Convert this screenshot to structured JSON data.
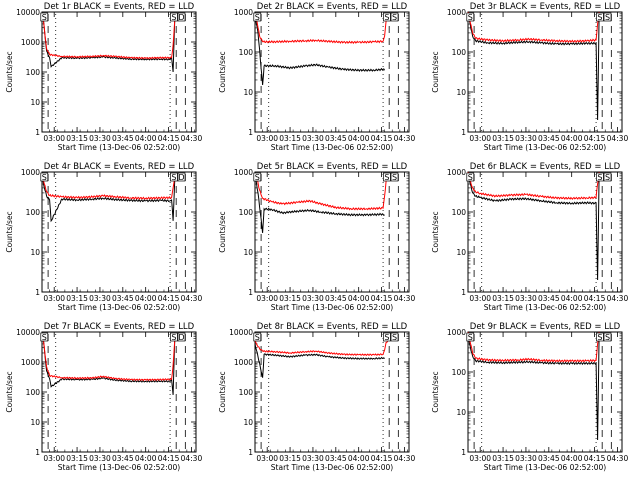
{
  "chart_data": [
    {
      "type": "line",
      "title": "Det 1r BLACK = Events, RED = LLD",
      "xlabel": "Start Time (13-Dec-06 02:52:00)",
      "ylabel": "Counts/sec",
      "xlim": [
        "02:52:00",
        "04:33:00"
      ],
      "ylim": [
        1,
        10000
      ],
      "yscale": "log",
      "xticks": [
        "03:00",
        "03:15",
        "03:30",
        "03:45",
        "04:00",
        "04:15",
        "04:30"
      ],
      "yticks": [
        "1",
        "10",
        "100",
        "1000",
        "10000"
      ],
      "markers": [
        "S",
        "S",
        "D"
      ],
      "series": [
        {
          "color": "#000000",
          "x": [
            "02:52",
            "02:53",
            "02:55",
            "02:57",
            "02:58",
            "03:05",
            "03:15",
            "03:25",
            "03:32",
            "03:40",
            "03:50",
            "04:00",
            "04:10",
            "04:16",
            "04:17",
            "04:18",
            "04:19",
            "04:20"
          ],
          "y": [
            9000,
            5000,
            500,
            300,
            150,
            300,
            290,
            300,
            320,
            295,
            270,
            265,
            270,
            260,
            300,
            100,
            5000,
            9000
          ]
        },
        {
          "color": "#ff0000",
          "x": [
            "02:52",
            "02:53",
            "02:55",
            "02:57",
            "03:05",
            "03:15",
            "03:25",
            "03:32",
            "03:40",
            "03:50",
            "04:00",
            "04:10",
            "04:17",
            "04:18",
            "04:19",
            "04:20"
          ],
          "y": [
            9000,
            5000,
            600,
            380,
            330,
            320,
            330,
            350,
            330,
            300,
            290,
            300,
            300,
            800,
            5000,
            9000
          ]
        }
      ]
    },
    {
      "type": "line",
      "title": "Det 2r BLACK = Events, RED = LLD",
      "xlabel": "Start Time (13-Dec-06 02:52:00)",
      "ylabel": "Counts/sec",
      "xlim": [
        "02:52:00",
        "04:33:00"
      ],
      "ylim": [
        1,
        1000
      ],
      "yscale": "log",
      "xticks": [
        "03:00",
        "03:15",
        "03:30",
        "03:45",
        "04:00",
        "04:15",
        "04:30"
      ],
      "yticks": [
        "1",
        "10",
        "100",
        "1000"
      ],
      "markers": [
        "S",
        "S",
        "S"
      ],
      "series": [
        {
          "color": "#000000",
          "x": [
            "02:52",
            "02:54",
            "02:57",
            "02:58",
            "03:05",
            "03:15",
            "03:25",
            "03:32",
            "03:40",
            "03:50",
            "04:00",
            "04:10",
            "04:16",
            "04:17"
          ],
          "y": [
            800,
            300,
            15,
            45,
            45,
            40,
            45,
            48,
            42,
            37,
            35,
            35,
            37,
            35
          ]
        },
        {
          "color": "#ff0000",
          "x": [
            "02:52",
            "02:53",
            "02:55",
            "02:57",
            "03:05",
            "03:15",
            "03:25",
            "03:32",
            "03:40",
            "03:50",
            "04:00",
            "04:10",
            "04:16",
            "04:17",
            "04:18",
            "04:19"
          ],
          "y": [
            900,
            700,
            250,
            180,
            180,
            185,
            190,
            195,
            185,
            175,
            175,
            180,
            185,
            250,
            600,
            900
          ]
        }
      ]
    },
    {
      "type": "line",
      "title": "Det 3r BLACK = Events, RED = LLD",
      "xlabel": "Start Time (13-Dec-06 02:52:00)",
      "ylabel": "Counts/sec",
      "xlim": [
        "02:52:00",
        "04:33:00"
      ],
      "ylim": [
        1,
        1000
      ],
      "yscale": "log",
      "xticks": [
        "03:00",
        "03:15",
        "03:30",
        "03:45",
        "04:00",
        "04:15",
        "04:30"
      ],
      "yticks": [
        "1",
        "10",
        "100",
        "1000"
      ],
      "markers": [
        "S",
        "S",
        "S"
      ],
      "series": [
        {
          "color": "#000000",
          "x": [
            "02:52",
            "02:53",
            "02:55",
            "02:57",
            "03:05",
            "03:15",
            "03:25",
            "03:32",
            "03:40",
            "03:50",
            "04:00",
            "04:10",
            "04:16",
            "04:17",
            "04:18"
          ],
          "y": [
            1000,
            600,
            250,
            190,
            170,
            165,
            175,
            180,
            170,
            160,
            160,
            165,
            165,
            2,
            900
          ]
        },
        {
          "color": "#ff0000",
          "x": [
            "02:52",
            "02:53",
            "02:55",
            "02:57",
            "03:05",
            "03:15",
            "03:25",
            "03:32",
            "03:40",
            "03:50",
            "04:00",
            "04:10",
            "04:16",
            "04:17",
            "04:18"
          ],
          "y": [
            1000,
            700,
            300,
            220,
            200,
            190,
            200,
            210,
            200,
            190,
            185,
            190,
            200,
            500,
            1000
          ]
        }
      ]
    },
    {
      "type": "line",
      "title": "Det 4r BLACK = Events, RED = LLD",
      "xlabel": "Start Time (13-Dec-06 02:52:00)",
      "ylabel": "Counts/sec",
      "xlim": [
        "02:52:00",
        "04:33:00"
      ],
      "ylim": [
        1,
        1000
      ],
      "yscale": "log",
      "xticks": [
        "03:00",
        "03:15",
        "03:30",
        "03:45",
        "04:00",
        "04:15",
        "04:30"
      ],
      "yticks": [
        "1",
        "10",
        "100",
        "1000"
      ],
      "markers": [
        "S",
        "S",
        "D"
      ],
      "series": [
        {
          "color": "#000000",
          "x": [
            "02:52",
            "02:53",
            "02:55",
            "02:57",
            "02:58",
            "03:05",
            "03:15",
            "03:25",
            "03:32",
            "03:40",
            "03:50",
            "04:00",
            "04:10",
            "04:16",
            "04:17",
            "04:18",
            "04:19",
            "04:20"
          ],
          "y": [
            900,
            500,
            250,
            200,
            60,
            210,
            200,
            210,
            220,
            205,
            195,
            190,
            195,
            190,
            200,
            60,
            600,
            900
          ]
        },
        {
          "color": "#ff0000",
          "x": [
            "02:52",
            "02:53",
            "02:55",
            "02:57",
            "03:05",
            "03:15",
            "03:25",
            "03:32",
            "03:40",
            "03:50",
            "04:00",
            "04:10",
            "04:17",
            "04:18",
            "04:19",
            "04:20"
          ],
          "y": [
            900,
            600,
            320,
            260,
            240,
            230,
            240,
            255,
            240,
            225,
            220,
            225,
            230,
            400,
            700,
            900
          ]
        }
      ]
    },
    {
      "type": "line",
      "title": "Det 5r BLACK = Events, RED = LLD",
      "xlabel": "Start Time (13-Dec-06 02:52:00)",
      "ylabel": "Counts/sec",
      "xlim": [
        "02:52:00",
        "04:33:00"
      ],
      "ylim": [
        1,
        1000
      ],
      "yscale": "log",
      "xticks": [
        "03:00",
        "03:15",
        "03:30",
        "03:45",
        "04:00",
        "04:15",
        "04:30"
      ],
      "yticks": [
        "1",
        "10",
        "100",
        "1000"
      ],
      "markers": [
        "S",
        "S",
        "S"
      ],
      "series": [
        {
          "color": "#000000",
          "x": [
            "02:52",
            "02:54",
            "02:57",
            "02:58",
            "03:03",
            "03:10",
            "03:20",
            "03:28",
            "03:35",
            "03:45",
            "03:55",
            "04:05",
            "04:16",
            "04:17"
          ],
          "y": [
            900,
            300,
            30,
            120,
            115,
            95,
            105,
            110,
            100,
            90,
            85,
            85,
            88,
            85
          ]
        },
        {
          "color": "#ff0000",
          "x": [
            "02:52",
            "02:53",
            "02:55",
            "02:57",
            "03:03",
            "03:10",
            "03:20",
            "03:28",
            "03:35",
            "03:45",
            "03:55",
            "04:05",
            "04:16",
            "04:17",
            "04:18",
            "04:19"
          ],
          "y": [
            900,
            800,
            350,
            220,
            180,
            160,
            175,
            190,
            160,
            130,
            120,
            120,
            125,
            250,
            600,
            900
          ]
        }
      ]
    },
    {
      "type": "line",
      "title": "Det 6r BLACK = Events, RED = LLD",
      "xlabel": "Start Time (13-Dec-06 02:52:00)",
      "ylabel": "Counts/sec",
      "xlim": [
        "02:52:00",
        "04:33:00"
      ],
      "ylim": [
        1,
        1000
      ],
      "yscale": "log",
      "xticks": [
        "03:00",
        "03:15",
        "03:30",
        "03:45",
        "04:00",
        "04:15",
        "04:30"
      ],
      "yticks": [
        "1",
        "10",
        "100",
        "1000"
      ],
      "markers": [
        "S",
        "S",
        "S"
      ],
      "series": [
        {
          "color": "#000000",
          "x": [
            "02:52",
            "02:53",
            "02:55",
            "02:57",
            "03:00",
            "03:10",
            "03:20",
            "03:30",
            "03:40",
            "03:50",
            "04:00",
            "04:10",
            "04:16",
            "04:17",
            "04:18"
          ],
          "y": [
            1000,
            600,
            300,
            250,
            230,
            190,
            210,
            215,
            190,
            170,
            165,
            170,
            165,
            2,
            900
          ]
        },
        {
          "color": "#ff0000",
          "x": [
            "02:52",
            "02:53",
            "02:55",
            "02:57",
            "03:00",
            "03:10",
            "03:20",
            "03:30",
            "03:40",
            "03:50",
            "04:00",
            "04:10",
            "04:16",
            "04:17",
            "04:18"
          ],
          "y": [
            1000,
            700,
            400,
            320,
            290,
            250,
            265,
            275,
            245,
            225,
            220,
            225,
            230,
            500,
            1000
          ]
        }
      ]
    },
    {
      "type": "line",
      "title": "Det 7r BLACK = Events, RED = LLD",
      "xlabel": "Start Time (13-Dec-06 02:52:00)",
      "ylabel": "Counts/sec",
      "xlim": [
        "02:52:00",
        "04:33:00"
      ],
      "ylim": [
        1,
        10000
      ],
      "yscale": "log",
      "xticks": [
        "03:00",
        "03:15",
        "03:30",
        "03:45",
        "04:00",
        "04:15",
        "04:30"
      ],
      "yticks": [
        "1",
        "10",
        "100",
        "1000",
        "10000"
      ],
      "markers": [
        "S",
        "S",
        "D"
      ],
      "series": [
        {
          "color": "#000000",
          "x": [
            "02:52",
            "02:53",
            "02:55",
            "02:57",
            "02:58",
            "03:05",
            "03:15",
            "03:25",
            "03:32",
            "03:40",
            "03:50",
            "04:00",
            "04:10",
            "04:16",
            "04:17",
            "04:18",
            "04:19",
            "04:20"
          ],
          "y": [
            9000,
            5000,
            500,
            280,
            150,
            270,
            260,
            265,
            290,
            250,
            230,
            225,
            230,
            225,
            260,
            80,
            5000,
            9000
          ]
        },
        {
          "color": "#ff0000",
          "x": [
            "02:52",
            "02:53",
            "02:55",
            "02:57",
            "03:05",
            "03:15",
            "03:25",
            "03:32",
            "03:40",
            "03:50",
            "04:00",
            "04:10",
            "04:17",
            "04:18",
            "04:19",
            "04:20"
          ],
          "y": [
            9000,
            5000,
            700,
            350,
            300,
            290,
            295,
            330,
            280,
            260,
            255,
            260,
            265,
            800,
            5000,
            9000
          ]
        }
      ]
    },
    {
      "type": "line",
      "title": "Det 8r BLACK = Events, RED = LLD",
      "xlabel": "Start Time (13-Dec-06 02:52:00)",
      "ylabel": "Counts/sec",
      "xlim": [
        "02:52:00",
        "04:33:00"
      ],
      "ylim": [
        1,
        10000
      ],
      "yscale": "log",
      "xticks": [
        "03:00",
        "03:15",
        "03:30",
        "03:45",
        "04:00",
        "04:15",
        "04:30"
      ],
      "yticks": [
        "1",
        "10",
        "100",
        "1000",
        "10000"
      ],
      "markers": [
        "S",
        "S",
        "S"
      ],
      "series": [
        {
          "color": "#000000",
          "x": [
            "02:52",
            "02:54",
            "02:57",
            "02:58",
            "03:05",
            "03:15",
            "03:25",
            "03:32",
            "03:40",
            "03:50",
            "04:00",
            "04:10",
            "04:16",
            "04:17"
          ],
          "y": [
            4000,
            1500,
            300,
            1800,
            1700,
            1500,
            1700,
            1750,
            1500,
            1350,
            1300,
            1300,
            1350,
            1300
          ]
        },
        {
          "color": "#ff0000",
          "x": [
            "02:52",
            "02:53",
            "02:55",
            "02:57",
            "03:05",
            "03:15",
            "03:25",
            "03:32",
            "03:40",
            "03:50",
            "04:00",
            "04:10",
            "04:16",
            "04:17",
            "04:18",
            "04:19"
          ],
          "y": [
            5000,
            4000,
            2800,
            2300,
            2200,
            2000,
            2200,
            2300,
            2000,
            1800,
            1750,
            1750,
            1800,
            2500,
            4500,
            5000
          ]
        }
      ]
    },
    {
      "type": "line",
      "title": "Det 9r BLACK = Events, RED = LLD",
      "xlabel": "Start Time (13-Dec-06 02:52:00)",
      "ylabel": "Counts/sec",
      "xlim": [
        "02:52:00",
        "04:33:00"
      ],
      "ylim": [
        1,
        1000
      ],
      "yscale": "log",
      "xticks": [
        "03:00",
        "03:15",
        "03:30",
        "03:45",
        "04:00",
        "04:15",
        "04:30"
      ],
      "yticks": [
        "1",
        "10",
        "100",
        "1000"
      ],
      "markers": [
        "S",
        "S",
        "S"
      ],
      "series": [
        {
          "color": "#000000",
          "x": [
            "02:52",
            "02:53",
            "02:55",
            "02:57",
            "03:05",
            "03:15",
            "03:25",
            "03:32",
            "03:40",
            "03:50",
            "04:00",
            "04:10",
            "04:16",
            "04:17",
            "04:18"
          ],
          "y": [
            1000,
            500,
            250,
            190,
            175,
            170,
            175,
            180,
            170,
            165,
            165,
            165,
            165,
            2,
            900
          ]
        },
        {
          "color": "#ff0000",
          "x": [
            "02:52",
            "02:53",
            "02:55",
            "02:57",
            "03:05",
            "03:15",
            "03:25",
            "03:32",
            "03:40",
            "03:50",
            "04:00",
            "04:10",
            "04:16",
            "04:17",
            "04:18"
          ],
          "y": [
            1000,
            700,
            300,
            220,
            200,
            195,
            200,
            210,
            195,
            190,
            190,
            190,
            195,
            500,
            1000
          ]
        }
      ]
    }
  ]
}
